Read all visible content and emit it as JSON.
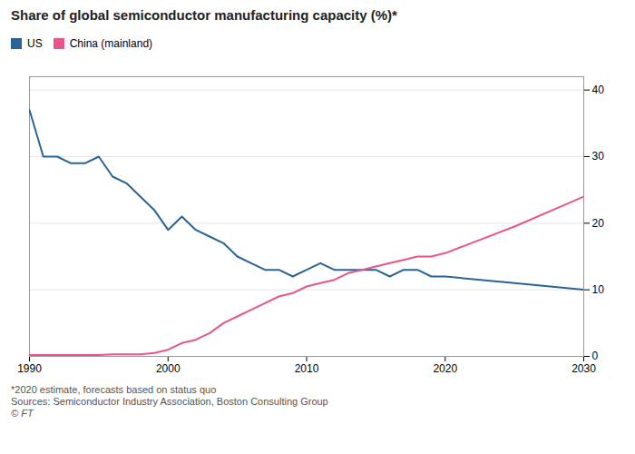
{
  "chart_data": {
    "type": "line",
    "title": "Share of global semiconductor manufacturing capacity (%)*",
    "footnotes": [
      "*2020 estimate, forecasts based on status quo",
      "Sources: Semiconductor Industry Association, Boston Consulting Group",
      "© FT"
    ],
    "x": [
      1990,
      1991,
      1992,
      1993,
      1994,
      1995,
      1996,
      1997,
      1998,
      1999,
      2000,
      2001,
      2002,
      2003,
      2004,
      2005,
      2006,
      2007,
      2008,
      2009,
      2010,
      2011,
      2012,
      2013,
      2014,
      2015,
      2016,
      2017,
      2018,
      2019,
      2020,
      2025,
      2030
    ],
    "series": [
      {
        "name": "US",
        "color": "#2a6496",
        "values": [
          37,
          30,
          30,
          29,
          29,
          30,
          27,
          26,
          24,
          22,
          19,
          21,
          19,
          18,
          17,
          15,
          14,
          13,
          13,
          12,
          13,
          14,
          13,
          13,
          13,
          13,
          12,
          13,
          13,
          12,
          12,
          11,
          10
        ]
      },
      {
        "name": "China (mainland)",
        "color": "#e8558a",
        "values": [
          0.2,
          0.2,
          0.2,
          0.2,
          0.2,
          0.2,
          0.3,
          0.3,
          0.3,
          0.5,
          1.0,
          2.0,
          2.5,
          3.5,
          5.0,
          6.0,
          7.0,
          8.0,
          9.0,
          9.5,
          10.5,
          11.0,
          11.5,
          12.5,
          13.0,
          13.5,
          14.0,
          14.5,
          15.0,
          15.0,
          15.5,
          19.5,
          24.0
        ]
      }
    ],
    "xlim": [
      1990,
      2030
    ],
    "ylim": [
      0,
      42
    ],
    "xticks": [
      1990,
      2000,
      2010,
      2020,
      2030
    ],
    "yticks": [
      0,
      10,
      20,
      30,
      40
    ],
    "grid": true,
    "legend": "upper left"
  }
}
